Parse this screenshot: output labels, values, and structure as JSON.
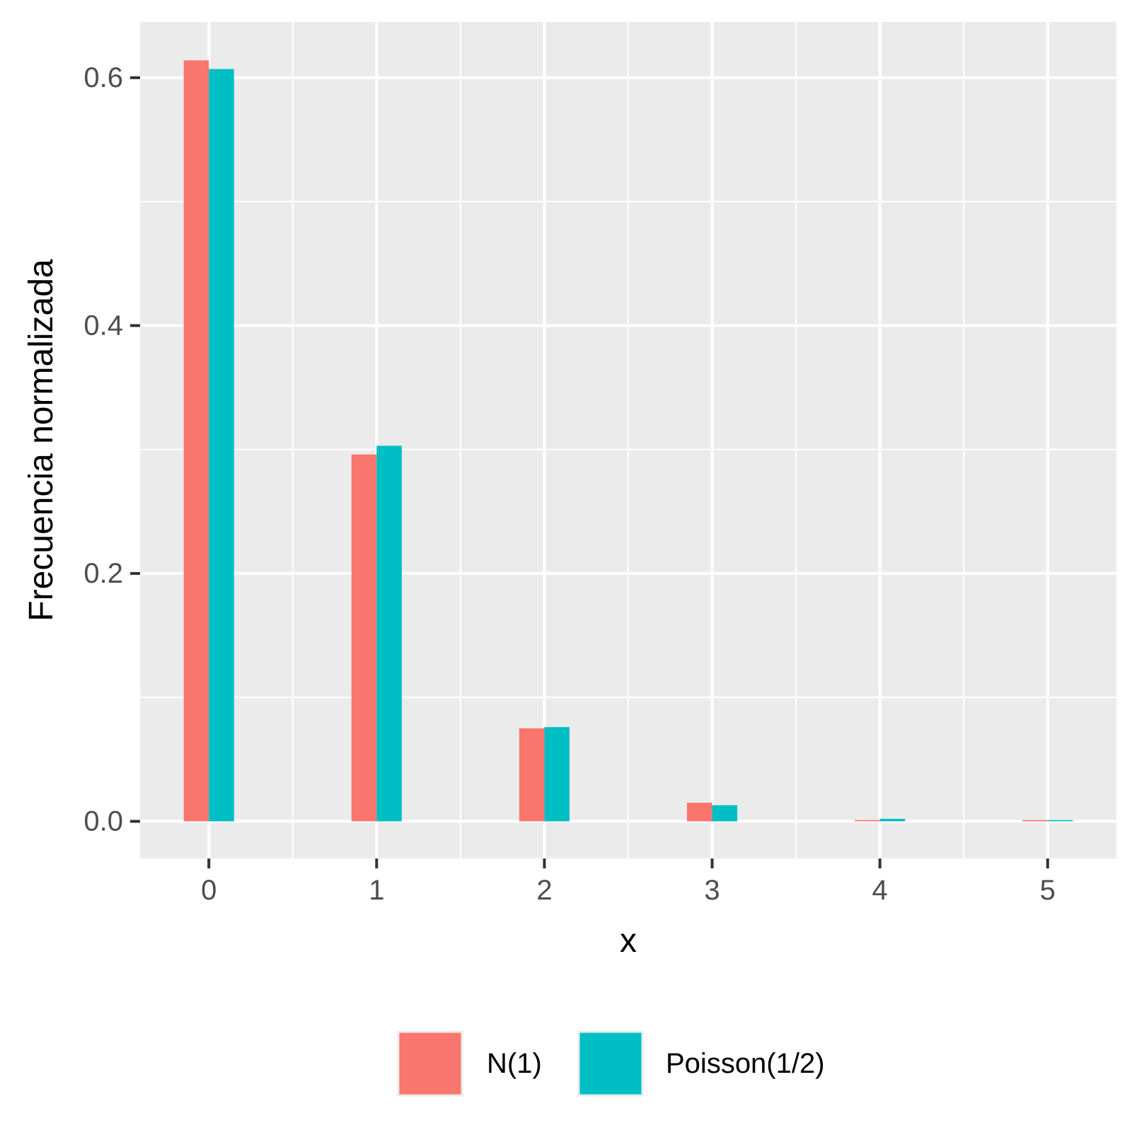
{
  "chart_data": {
    "type": "bar",
    "title": "",
    "xlabel": "x",
    "ylabel": "Frecuencia normalizada",
    "categories": [
      "0",
      "1",
      "2",
      "3",
      "4",
      "5"
    ],
    "x": [
      0,
      1,
      2,
      3,
      4,
      5
    ],
    "series": [
      {
        "name": "N(1)",
        "color": "#F8766D",
        "values": [
          0.614,
          0.296,
          0.075,
          0.015,
          0.001,
          0.001
        ]
      },
      {
        "name": "Poisson(1/2)",
        "color": "#00BFC4",
        "values": [
          0.607,
          0.303,
          0.076,
          0.013,
          0.002,
          0.001
        ]
      }
    ],
    "ylim": [
      -0.03,
      0.645
    ],
    "xlim": [
      -0.41,
      5.41
    ],
    "yticks": [
      0.0,
      0.2,
      0.4,
      0.6
    ],
    "ytick_labels": [
      "0.0",
      "0.2",
      "0.4",
      "0.6"
    ],
    "xticks": [
      0,
      1,
      2,
      3,
      4,
      5
    ],
    "xtick_labels": [
      "0",
      "1",
      "2",
      "3",
      "4",
      "5"
    ],
    "grid": true,
    "panel_background": "#EBEBEB",
    "grid_color": "#FFFFFF",
    "legend_position": "bottom"
  }
}
